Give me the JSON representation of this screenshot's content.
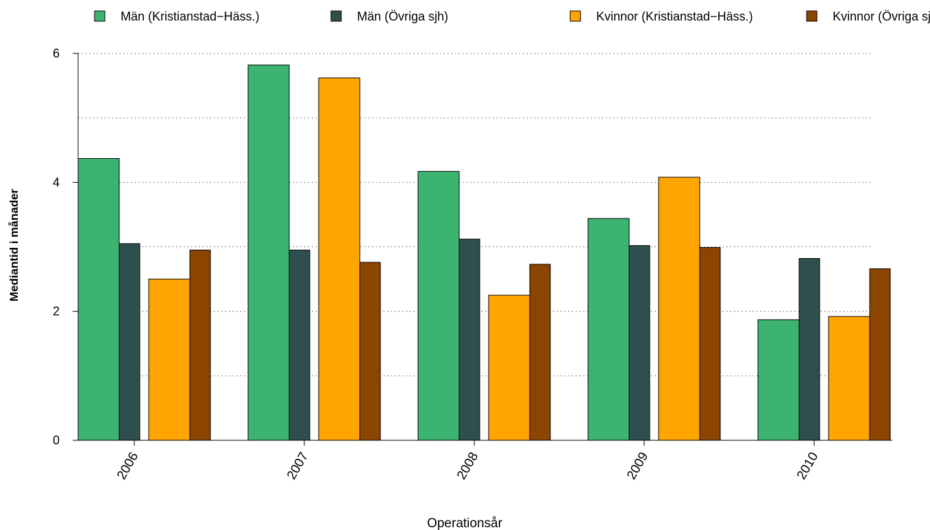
{
  "chart_data": {
    "type": "bar",
    "title": "",
    "xlabel": "Operationsår",
    "ylabel": "Mediantid i månader",
    "categories": [
      "2006",
      "2007",
      "2008",
      "2009",
      "2010"
    ],
    "ylim": [
      0,
      6
    ],
    "yticks": [
      0,
      2,
      4,
      6
    ],
    "grid": true,
    "legend_position": "top",
    "series": [
      {
        "name": "Män (Kristianstad−Häss.)",
        "color": "#3cb371",
        "values": [
          4.37,
          5.82,
          4.17,
          3.44,
          1.87
        ]
      },
      {
        "name": "Män (Övriga sjh)",
        "color": "#2f4f4f",
        "values": [
          3.05,
          2.95,
          3.12,
          3.02,
          2.82
        ]
      },
      {
        "name": "Kvinnor (Kristianstad−Häss.)",
        "color": "#ffa500",
        "values": [
          2.5,
          5.62,
          2.25,
          4.08,
          1.92
        ]
      },
      {
        "name": "Kvinnor (Övriga sjh)",
        "color": "#8b4500",
        "values": [
          2.95,
          2.76,
          2.73,
          2.99,
          2.66
        ]
      }
    ]
  }
}
